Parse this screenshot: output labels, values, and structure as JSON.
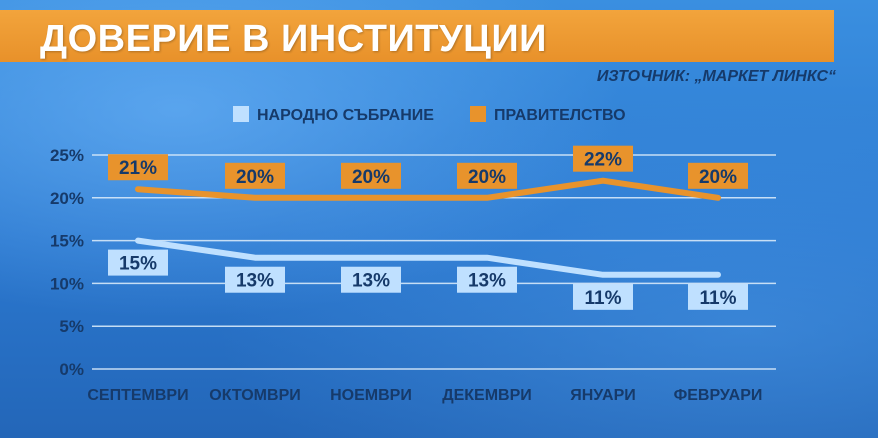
{
  "header": {
    "title": "ДОВЕРИЕ В ИНСТИТУЦИИ",
    "source": "ИЗТОЧНИК: „МАРКЕТ ЛИНКС“"
  },
  "colors": {
    "banner": "#EE9A30",
    "series_1": "#BFE0FF",
    "series_2": "#E8932C",
    "text": "#163A6A",
    "grid": "#D7E9FA"
  },
  "chart_data": {
    "type": "line",
    "categories": [
      "СЕПТЕМВРИ",
      "ОКТОМВРИ",
      "НОЕМВРИ",
      "ДЕКЕМВРИ",
      "ЯНУАРИ",
      "ФЕВРУАРИ"
    ],
    "series": [
      {
        "name": "НАРОДНО СЪБРАНИЕ",
        "values": [
          15,
          13,
          13,
          13,
          11,
          11
        ],
        "labels": [
          "15%",
          "13%",
          "13%",
          "13%",
          "11%",
          "11%"
        ]
      },
      {
        "name": "ПРАВИТЕЛСТВО",
        "values": [
          21,
          20,
          20,
          20,
          22,
          20
        ],
        "labels": [
          "21%",
          "20%",
          "20%",
          "20%",
          "22%",
          "20%"
        ]
      }
    ],
    "y_ticks": [
      "0%",
      "5%",
      "10%",
      "15%",
      "20%",
      "25%"
    ],
    "ylim": [
      0,
      25
    ],
    "grid": true,
    "legend_position": "top"
  }
}
